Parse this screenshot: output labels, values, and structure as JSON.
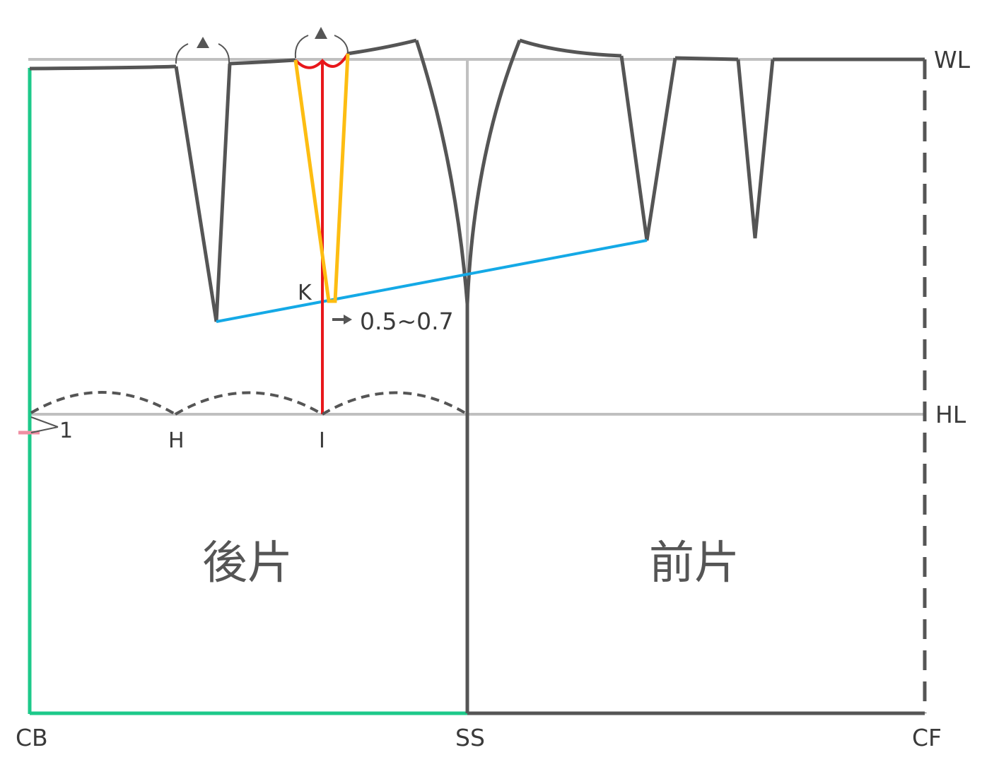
{
  "labels": {
    "wl": "WL",
    "hl": "HL",
    "cb": "CB",
    "ss": "SS",
    "cf": "CF",
    "h": "H",
    "i": "I",
    "k": "K",
    "one": "1",
    "measure": "0.5~0.7",
    "back": "後片",
    "front": "前片"
  },
  "colors": {
    "outline": "#555555",
    "guide": "#c0c0c0",
    "center_back": "#1dc98a",
    "hem_back": "#1dc98a",
    "dart_line": "#e8171b",
    "new_dart": "#fdbd12",
    "slant_line": "#14a9e6",
    "marker": "#ef8fa3"
  },
  "icons": [
    "triangle-mark-icon",
    "arrow-right-icon"
  ]
}
